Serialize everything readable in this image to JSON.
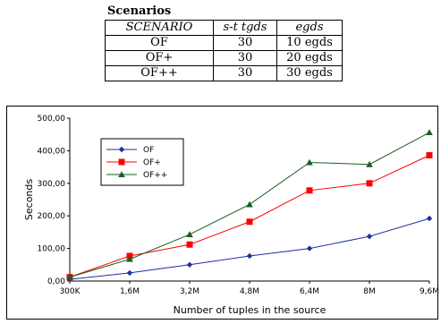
{
  "scenarios": {
    "title": "Scenarios",
    "headers": [
      "SCENARIO",
      "s-t tgds",
      "egds"
    ],
    "rows": [
      [
        "OF",
        "30",
        "10 egds"
      ],
      [
        "OF+",
        "30",
        "20 egds"
      ],
      [
        "OF++",
        "30",
        "30 egds"
      ]
    ]
  },
  "chart_data": {
    "type": "line",
    "title": "",
    "xlabel": "Number of tuples in the source",
    "ylabel": "Seconds",
    "categories": [
      "300K",
      "1,6M",
      "3,2M",
      "4,8M",
      "6,4M",
      "8M",
      "9,6M"
    ],
    "y_ticks": [
      "0,00",
      "100,00",
      "200,00",
      "300,00",
      "400,00",
      "500,00"
    ],
    "ylim": [
      0,
      500
    ],
    "grid": false,
    "legend_position": "top-left",
    "series": [
      {
        "name": "OF",
        "color": "#1f2f9f",
        "marker": "diamond",
        "values": [
          5,
          25,
          50,
          77,
          100,
          137,
          192
        ]
      },
      {
        "name": "OF+",
        "color": "#ff0000",
        "marker": "square",
        "values": [
          12,
          77,
          112,
          182,
          278,
          300,
          386
        ]
      },
      {
        "name": "OF++",
        "color": "#1b5e20",
        "marker": "triangle",
        "values": [
          12,
          67,
          143,
          235,
          364,
          358,
          456
        ]
      }
    ]
  }
}
